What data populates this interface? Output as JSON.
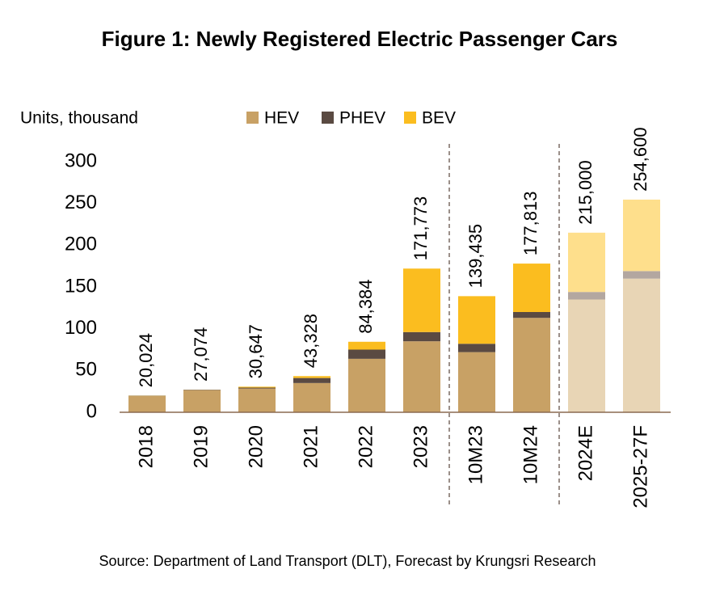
{
  "chart_data": {
    "type": "stacked_bar",
    "title": "Figure 1: Newly Registered Electric Passenger Cars",
    "y_label": "Units, thousand",
    "source": "Source: Department of Land Transport (DLT), Forecast by Krungsri Research",
    "categories": [
      "2018",
      "2019",
      "2020",
      "2021",
      "2022",
      "2023",
      "10M23",
      "10M24",
      "2024E",
      "2025-27F"
    ],
    "series": [
      {
        "name": "HEV",
        "color": "#c8a165",
        "forecast_color": "#e8d5b5",
        "values": [
          19.5,
          26.5,
          28.5,
          35,
          64,
          85,
          72,
          113,
          135,
          160
        ]
      },
      {
        "name": "PHEV",
        "color": "#5a4a42",
        "forecast_color": "#b3a7a0",
        "values": [
          0.3,
          0.5,
          1.0,
          6,
          11,
          11,
          10,
          7,
          9,
          9
        ]
      },
      {
        "name": "BEV",
        "color": "#fbbd1f",
        "forecast_color": "#fedf8c",
        "values": [
          0.2,
          0.1,
          1.1,
          2.3,
          9.4,
          76,
          57,
          58,
          71,
          85.6
        ]
      }
    ],
    "totals": {
      "values": [
        20.024,
        27.074,
        30.647,
        43.328,
        84.384,
        171.773,
        139.435,
        177.813,
        215,
        254.6
      ],
      "value_labels": [
        "20,024",
        "27,074",
        "30,647",
        "43,328",
        "84,384",
        "171,773",
        "139,435",
        "177,813",
        "215,000",
        "254,600"
      ]
    },
    "forecast_from": "2024E",
    "dividers_after": [
      "2023",
      "10M24"
    ],
    "ylim": [
      0,
      300
    ],
    "yticks": [
      0,
      50,
      100,
      150,
      200,
      250,
      300
    ],
    "grid": false
  }
}
